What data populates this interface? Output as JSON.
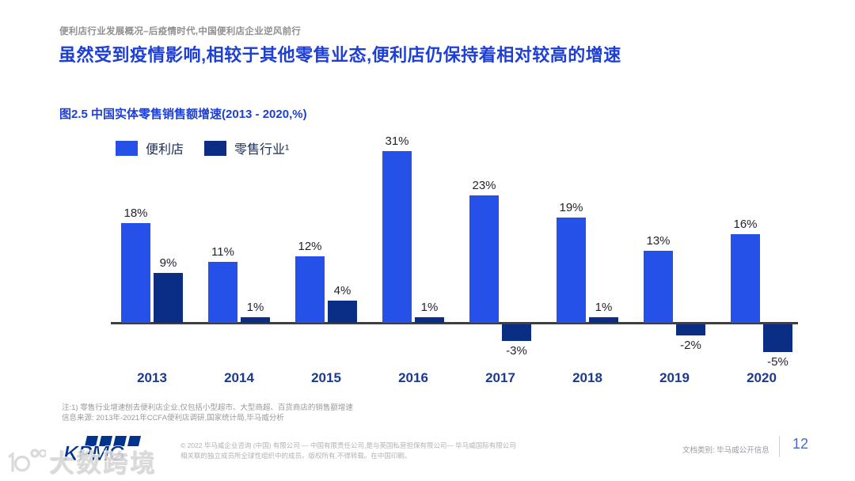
{
  "page": {
    "eyebrow": "便利店行业发展概况–后疫情时代,中国便利店企业逆风前行",
    "heading": "虽然受到疫情影响,相较于其他零售业态,便利店仍保持着相对较高的增速"
  },
  "chart_data": {
    "type": "bar",
    "title": "图2.5 中国实体零售销售额增速(2013 - 2020,%)",
    "categories": [
      "2013",
      "2014",
      "2015",
      "2016",
      "2017",
      "2018",
      "2019",
      "2020"
    ],
    "series": [
      {
        "name": "便利店",
        "color": "#2551e8",
        "values": [
          18,
          11,
          12,
          31,
          23,
          19,
          13,
          16
        ]
      },
      {
        "name": "零售行业¹",
        "color": "#0b2e85",
        "values": [
          9,
          1,
          4,
          1,
          -3,
          1,
          -2,
          -5
        ]
      }
    ],
    "value_suffix": "%",
    "xlabel": "",
    "ylabel": "",
    "ylim": [
      -7,
      33
    ],
    "grid": false,
    "legend_position": "top-left",
    "data_labels": true
  },
  "footnotes": {
    "note": "注:1) 零售行业增速刨去便利店企业,仅包括小型超市、大型商超、百货商店的销售额增速",
    "source": "信息来源: 2013年-2021年CCFA便利店调研,国家统计局,毕马威分析"
  },
  "footer": {
    "logo_text": "KPMG",
    "copyright_line1": "© 2022 毕马威企业咨询 (中国) 有限公司 — 中国有限责任公司,是与英国私营担保有限公司— 毕马威国际有限公司",
    "copyright_line2": "相关联的独立成员所全球性组织中的成员。版权所有,不得转载。在中国印刷。",
    "doc_class": "文档类别: 毕马威公开信息",
    "page_number": "12"
  },
  "watermark": {
    "text": "大数跨境",
    "icon": "10100-logo-icon"
  },
  "colors": {
    "heading_blue": "#1d3fd6",
    "bar_blue": "#2551e8",
    "bar_navy": "#0b2e85",
    "axis": "#3d3f44",
    "kpmg_blue": "#00338d"
  }
}
